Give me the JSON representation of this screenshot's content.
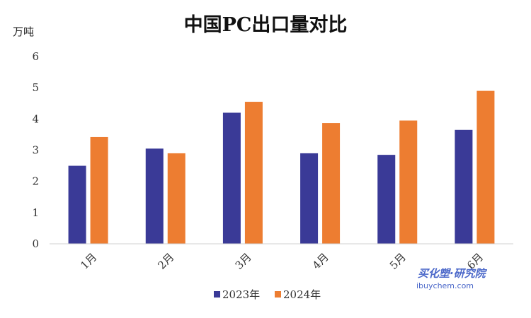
{
  "chart_data": {
    "type": "bar",
    "title": "中国PC出口量对比",
    "unit_label": "万吨",
    "categories": [
      "1月",
      "2月",
      "3月",
      "4月",
      "5月",
      "6月"
    ],
    "series": [
      {
        "name": "2023年",
        "color": "#3a3a97",
        "values": [
          2.5,
          3.05,
          4.2,
          2.9,
          2.85,
          3.65
        ]
      },
      {
        "name": "2024年",
        "color": "#ed7d31",
        "values": [
          3.42,
          2.9,
          4.55,
          3.87,
          3.95,
          4.9
        ]
      }
    ],
    "ylim": [
      0,
      6
    ],
    "yticks": [
      0,
      1,
      2,
      3,
      4,
      5,
      6
    ],
    "grid": false,
    "legend_position": "bottom-center"
  },
  "watermark": {
    "main": "买化塑·研究院",
    "sub": "ibuychem.com"
  }
}
